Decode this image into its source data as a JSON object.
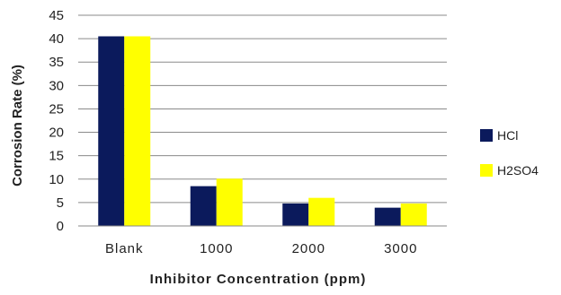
{
  "chart_data": {
    "type": "bar",
    "title": "",
    "xlabel": "Inhibitor Concentration (ppm)",
    "ylabel": "Corrosion Rate (%)",
    "categories": [
      "Blank",
      "1000",
      "2000",
      "3000"
    ],
    "ylim": [
      0,
      45
    ],
    "yticks": [
      0,
      5,
      10,
      15,
      20,
      25,
      30,
      35,
      40,
      45
    ],
    "grid": true,
    "legend_position": "right",
    "series": [
      {
        "name": "HCl",
        "color": "#0b1a5c",
        "values": [
          40.5,
          8.5,
          4.8,
          3.9
        ]
      },
      {
        "name": "H2SO4",
        "color": "#ffff00",
        "values": [
          40.5,
          10.1,
          6.0,
          4.8
        ]
      }
    ]
  }
}
